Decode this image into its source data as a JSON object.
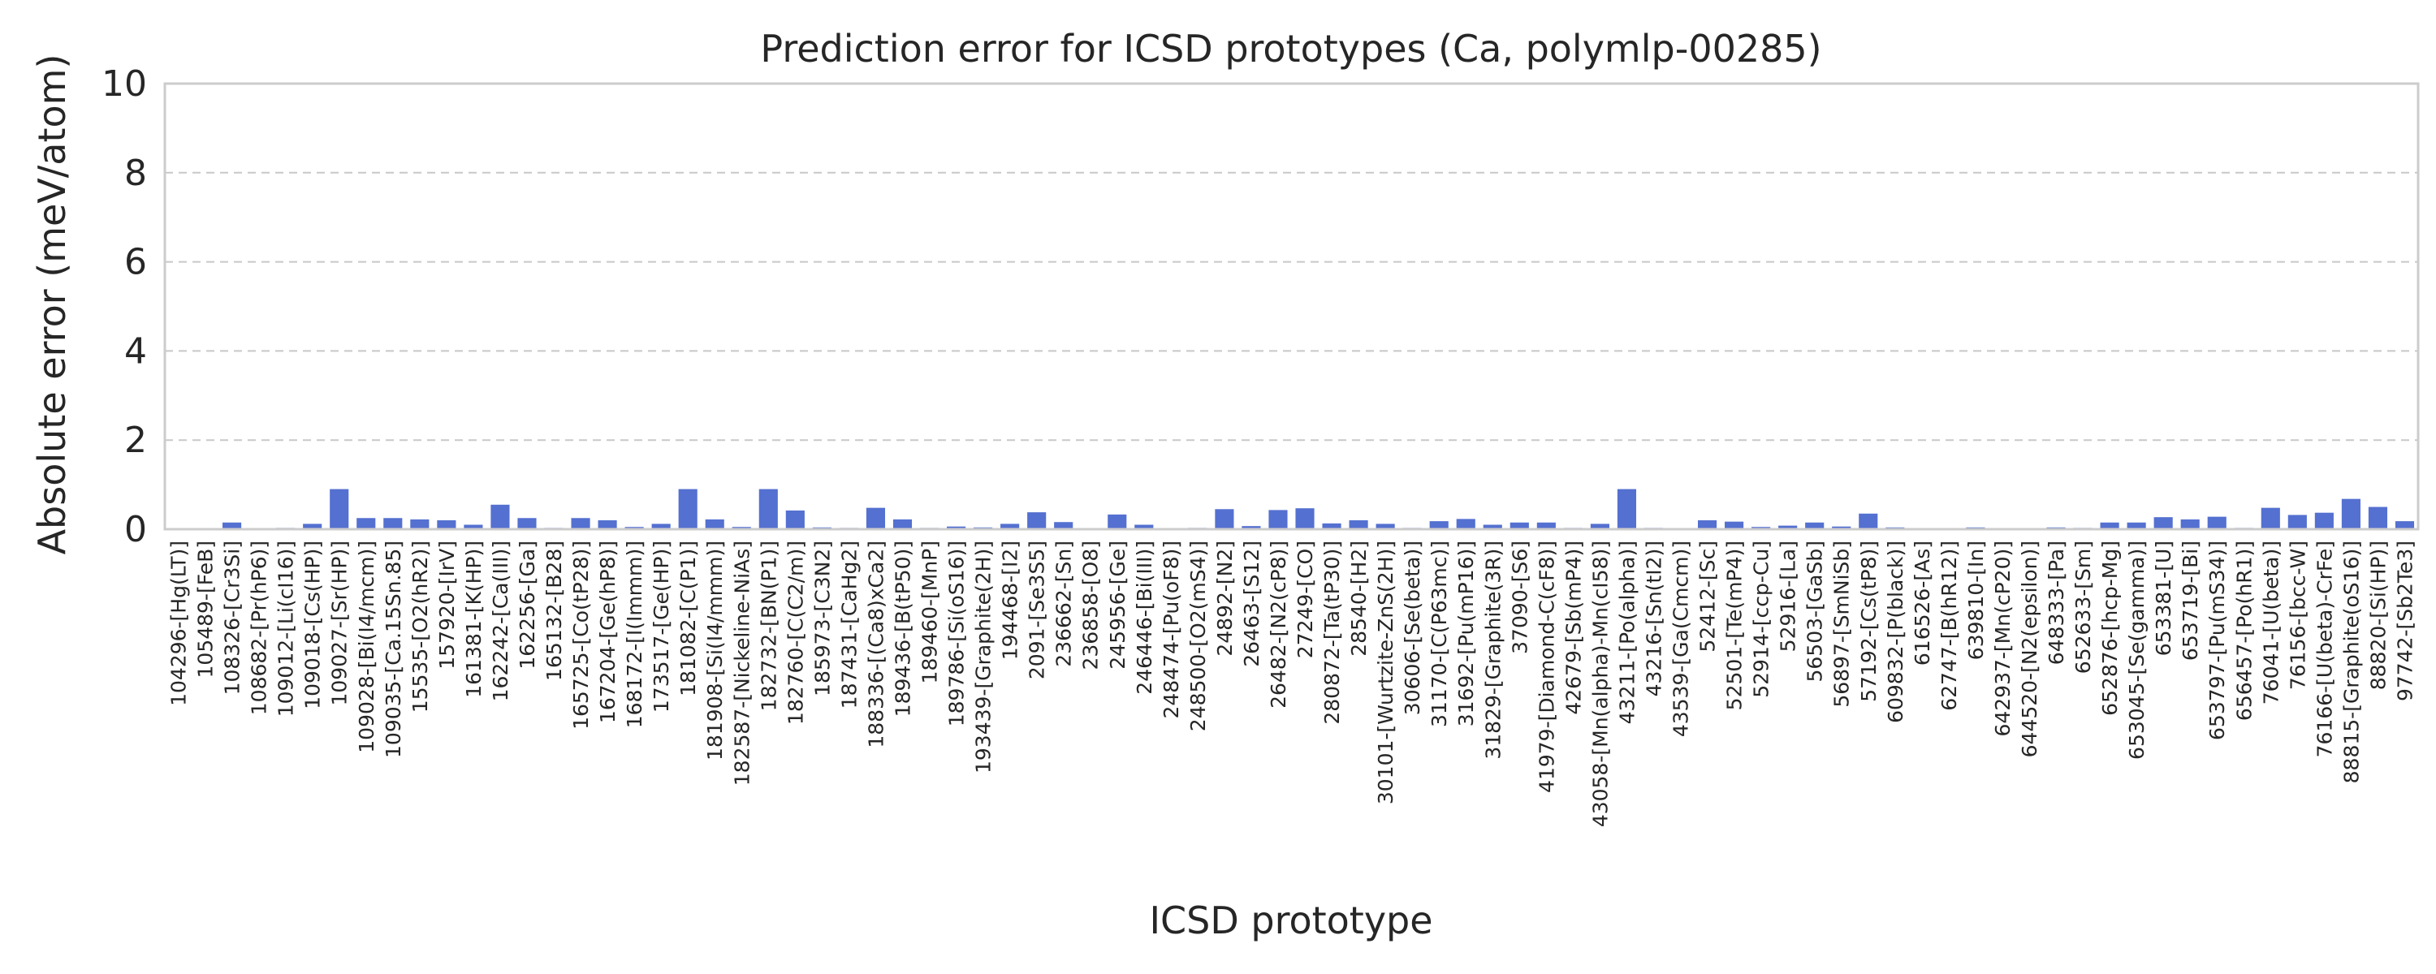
{
  "chart_data": {
    "type": "bar",
    "title": "Prediction error for ICSD prototypes (Ca, polymlp-00285)",
    "xlabel": "ICSD prototype",
    "ylabel": "Absolute error (meV/atom)",
    "ylim": [
      0,
      10
    ],
    "yticks": [
      0,
      2,
      4,
      6,
      8,
      10
    ],
    "grid": "y-dashed",
    "bar_color": "#5470d0",
    "categories": [
      "104296-[Hg(LT)]",
      "105489-[FeB]",
      "108326-[Cr3Si]",
      "108682-[Pr(hP6)]",
      "109012-[Li(cI16)]",
      "109018-[Cs(HP)]",
      "109027-[Sr(HP)]",
      "109028-[Bi(I4/mcm)]",
      "109035-[Ca.15Sn.85]",
      "15535-[O2(hR2)]",
      "157920-[IrV]",
      "161381-[K(HP)]",
      "162242-[Ca(III)]",
      "162256-[Ga]",
      "165132-[B28]",
      "165725-[Co(tP28)]",
      "167204-[Ge(hP8)]",
      "168172-[I(Immm)]",
      "173517-[Ge(HP)]",
      "181082-[C(P1)]",
      "181908-[Si(I4/mmm)]",
      "182587-[Nickeline-NiAs]",
      "182732-[BN(P1)]",
      "182760-[C(C2/m)]",
      "185973-[C3N2]",
      "187431-[CaHg2]",
      "188336-[(Ca8)xCa2]",
      "189436-[B(tP50)]",
      "189460-[MnP]",
      "189786-[Si(oS16)]",
      "193439-[Graphite(2H)]",
      "194468-[I2]",
      "2091-[Se3S5]",
      "236662-[Sn]",
      "236858-[O8]",
      "245956-[Ge]",
      "246446-[Bi(III)]",
      "248474-[Pu(oF8)]",
      "248500-[O2(mS4)]",
      "24892-[N2]",
      "26463-[S12]",
      "26482-[N2(cP8)]",
      "27249-[CO]",
      "280872-[Ta(tP30)]",
      "28540-[H2]",
      "30101-[Wurtzite-ZnS(2H)]",
      "30606-[Se(beta)]",
      "31170-[C(P63mc)]",
      "31692-[Pu(mP16)]",
      "31829-[Graphite(3R)]",
      "37090-[S6]",
      "41979-[Diamond-C(cF8)]",
      "42679-[Sb(mP4)]",
      "43058-[Mn(alpha)-Mn(cI58)]",
      "43211-[Po(alpha)]",
      "43216-[Sn(tI2)]",
      "43539-[Ga(Cmcm)]",
      "52412-[Sc]",
      "52501-[Te(mP4)]",
      "52914-[ccp-Cu]",
      "52916-[La]",
      "56503-[GaSb]",
      "56897-[SmNiSb]",
      "57192-[Cs(tP8)]",
      "609832-[P(black)]",
      "616526-[As]",
      "62747-[B(hR12)]",
      "639810-[In]",
      "642937-[Mn(cP20)]",
      "644520-[N2(epsilon)]",
      "648333-[Pa]",
      "652633-[Sm]",
      "652876-[hcp-Mg]",
      "653045-[Se(gamma)]",
      "653381-[U]",
      "653719-[Bi]",
      "653797-[Pu(mS34)]",
      "656457-[Po(hR1)]",
      "76041-[U(beta)]",
      "76156-[bcc-W]",
      "76166-[U(beta)-CrFe]",
      "88815-[Graphite(oS16)]",
      "88820-[Si(HP)]",
      "97742-[Sb2Te3]"
    ],
    "values": [
      0.02,
      0.02,
      0.15,
      0.02,
      0.03,
      0.12,
      0.9,
      0.25,
      0.25,
      0.22,
      0.2,
      0.1,
      0.55,
      0.25,
      0.03,
      0.25,
      0.2,
      0.05,
      0.12,
      0.9,
      0.22,
      0.05,
      0.9,
      0.42,
      0.04,
      0.03,
      0.48,
      0.22,
      0.03,
      0.06,
      0.04,
      0.12,
      0.38,
      0.16,
      0.02,
      0.33,
      0.1,
      0.02,
      0.03,
      0.45,
      0.07,
      0.43,
      0.47,
      0.13,
      0.2,
      0.12,
      0.03,
      0.18,
      0.23,
      0.1,
      0.15,
      0.15,
      0.03,
      0.12,
      0.9,
      0.03,
      0.02,
      0.2,
      0.17,
      0.05,
      0.08,
      0.15,
      0.06,
      0.35,
      0.04,
      0.02,
      0.02,
      0.04,
      0.02,
      0.02,
      0.04,
      0.03,
      0.15,
      0.15,
      0.27,
      0.22,
      0.28,
      0.03,
      0.48,
      0.32,
      0.37,
      0.68,
      0.5,
      0.18
    ]
  }
}
